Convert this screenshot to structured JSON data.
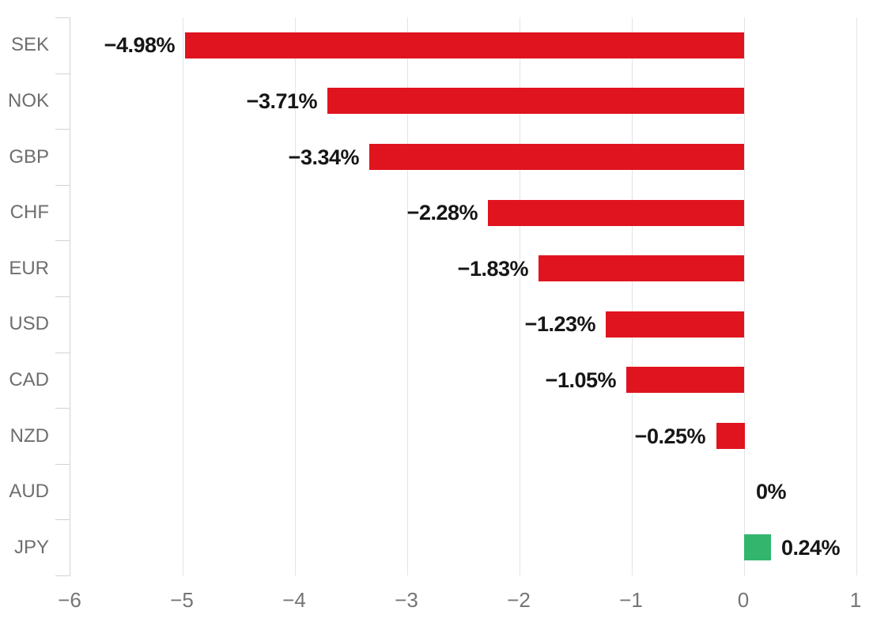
{
  "chart_data": {
    "type": "bar",
    "orientation": "horizontal",
    "title": "",
    "xlabel": "",
    "ylabel": "",
    "categories": [
      "SEK",
      "NOK",
      "GBP",
      "CHF",
      "EUR",
      "USD",
      "CAD",
      "NZD",
      "AUD",
      "JPY"
    ],
    "values": [
      -4.98,
      -3.71,
      -3.34,
      -2.28,
      -1.83,
      -1.23,
      -1.05,
      -0.25,
      0,
      0.24
    ],
    "value_labels": [
      "−4.98%",
      "−3.71%",
      "−3.34%",
      "−2.28%",
      "−1.83%",
      "−1.23%",
      "−1.05%",
      "−0.25%",
      "0%",
      "0.24%"
    ],
    "xlim": [
      -6,
      1
    ],
    "x_ticks": [
      -6,
      -5,
      -4,
      -3,
      -2,
      -1,
      0,
      1
    ],
    "x_tick_labels": [
      "−6",
      "−5",
      "−4",
      "−3",
      "−2",
      "−1",
      "0",
      "1"
    ],
    "grid": true,
    "legend": false,
    "colors": {
      "negative_bar": "#e0141f",
      "positive_bar": "#33b56e",
      "grid_line": "#e4e4e4",
      "axis_line": "#d2d2d2",
      "category_label": "#6e6e6e",
      "tick_label": "#757575",
      "data_label": "#161616",
      "background": "#ffffff"
    }
  }
}
